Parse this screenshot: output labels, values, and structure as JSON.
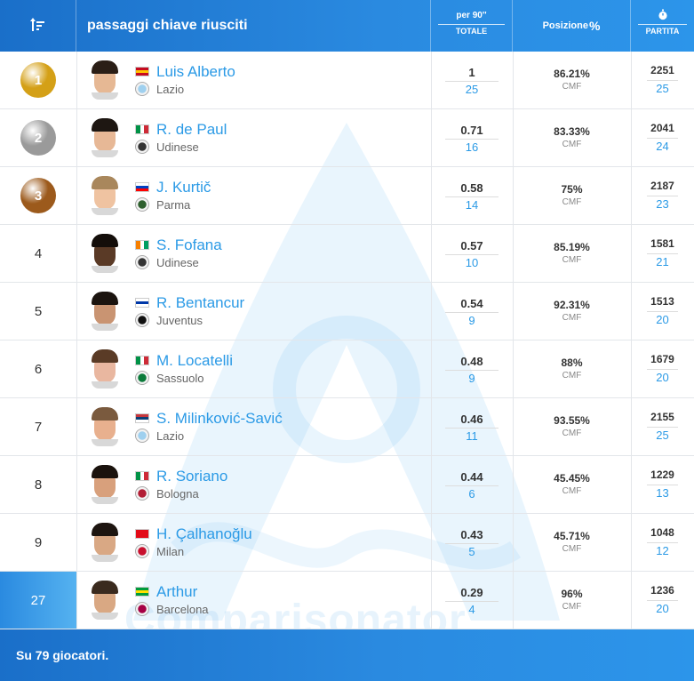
{
  "header": {
    "sort_icon": "sort-descending-icon",
    "title": "passaggi chiave riusciti",
    "stat_top": "per 90''",
    "stat_bottom": "TOTALE",
    "position_label": "Posizione",
    "position_icon": "percent-icon",
    "match_icon": "stopwatch-icon",
    "match_label": "PARTITA"
  },
  "colors": {
    "accent": "#2b9ae6",
    "gold": "#d4a017",
    "silver": "#9a9a9a",
    "bronze": "#9c5a1c"
  },
  "watermark": "Comparisonator",
  "rows": [
    {
      "rank": "1",
      "medal": "gold",
      "name": "Luis Alberto",
      "team": "Lazio",
      "per90": "1",
      "total": "25",
      "pct": "86.21%",
      "role": "CMF",
      "minutes": "2251",
      "matches": "25",
      "flag": [
        "#c60b1e",
        "#ffc400",
        "#c60b1e"
      ],
      "flag_dir": "h",
      "crest": "#9fd0ef",
      "hair": "#2a1e16",
      "skin": "#e6b894"
    },
    {
      "rank": "2",
      "medal": "silver",
      "name": "R. de Paul",
      "team": "Udinese",
      "per90": "0.71",
      "total": "16",
      "pct": "83.33%",
      "role": "CMF",
      "minutes": "2041",
      "matches": "24",
      "flag": [
        "#009246",
        "#ffffff",
        "#ce2b37"
      ],
      "flag_dir": "v",
      "crest": "#333333",
      "hair": "#1e1712",
      "skin": "#e7b896"
    },
    {
      "rank": "3",
      "medal": "bronze",
      "name": "J. Kurtič",
      "team": "Parma",
      "per90": "0.58",
      "total": "14",
      "pct": "75%",
      "role": "CMF",
      "minutes": "2187",
      "matches": "23",
      "flag": [
        "#ffffff",
        "#0041c2",
        "#ff0000"
      ],
      "flag_dir": "h",
      "crest": "#2e5f2e",
      "hair": "#a9875c",
      "skin": "#efc3a1"
    },
    {
      "rank": "4",
      "medal": "",
      "name": "S. Fofana",
      "team": "Udinese",
      "per90": "0.57",
      "total": "10",
      "pct": "85.19%",
      "role": "CMF",
      "minutes": "1581",
      "matches": "21",
      "flag": [
        "#f77f00",
        "#ffffff",
        "#009e60"
      ],
      "flag_dir": "v",
      "crest": "#333333",
      "hair": "#140e0a",
      "skin": "#5a3a26"
    },
    {
      "rank": "5",
      "medal": "",
      "name": "R. Bentancur",
      "team": "Juventus",
      "per90": "0.54",
      "total": "9",
      "pct": "92.31%",
      "role": "CMF",
      "minutes": "1513",
      "matches": "20",
      "flag": [
        "#ffffff",
        "#0038a8",
        "#ffffff"
      ],
      "flag_dir": "h",
      "crest": "#111111",
      "hair": "#1b140f",
      "skin": "#c99472"
    },
    {
      "rank": "6",
      "medal": "",
      "name": "M. Locatelli",
      "team": "Sassuolo",
      "per90": "0.48",
      "total": "9",
      "pct": "88%",
      "role": "CMF",
      "minutes": "1679",
      "matches": "20",
      "flag": [
        "#009246",
        "#ffffff",
        "#ce2b37"
      ],
      "flag_dir": "v",
      "crest": "#0b7a3a",
      "hair": "#5a3b26",
      "skin": "#e9b7a0"
    },
    {
      "rank": "7",
      "medal": "",
      "name": "S. Milinković-Savić",
      "team": "Lazio",
      "per90": "0.46",
      "total": "11",
      "pct": "93.55%",
      "role": "CMF",
      "minutes": "2155",
      "matches": "25",
      "flag": [
        "#c6363c",
        "#0c4076",
        "#ffffff"
      ],
      "flag_dir": "h",
      "crest": "#9fd0ef",
      "hair": "#7a5a3e",
      "skin": "#e8b08e"
    },
    {
      "rank": "8",
      "medal": "",
      "name": "R. Soriano",
      "team": "Bologna",
      "per90": "0.44",
      "total": "6",
      "pct": "45.45%",
      "role": "CMF",
      "minutes": "1229",
      "matches": "13",
      "flag": [
        "#009246",
        "#ffffff",
        "#ce2b37"
      ],
      "flag_dir": "v",
      "crest": "#b21e35",
      "hair": "#1a120d",
      "skin": "#d8a07c"
    },
    {
      "rank": "9",
      "medal": "",
      "name": "H. Çalhanoğlu",
      "team": "Milan",
      "per90": "0.43",
      "total": "5",
      "pct": "45.71%",
      "role": "CMF",
      "minutes": "1048",
      "matches": "12",
      "flag": [
        "#e30a17",
        "#e30a17",
        "#e30a17"
      ],
      "flag_dir": "h",
      "crest": "#c8102e",
      "hair": "#1d1510",
      "skin": "#d9a884"
    },
    {
      "rank": "27",
      "medal": "",
      "highlight": true,
      "name": "Arthur",
      "team": "Barcelona",
      "per90": "0.29",
      "total": "4",
      "pct": "96%",
      "role": "CMF",
      "minutes": "1236",
      "matches": "20",
      "flag": [
        "#009c3b",
        "#ffdf00",
        "#009c3b"
      ],
      "flag_dir": "h",
      "crest": "#a50044",
      "hair": "#3a2a1e",
      "skin": "#d9a883"
    }
  ],
  "footer": {
    "text": "Su 79 giocatori."
  }
}
